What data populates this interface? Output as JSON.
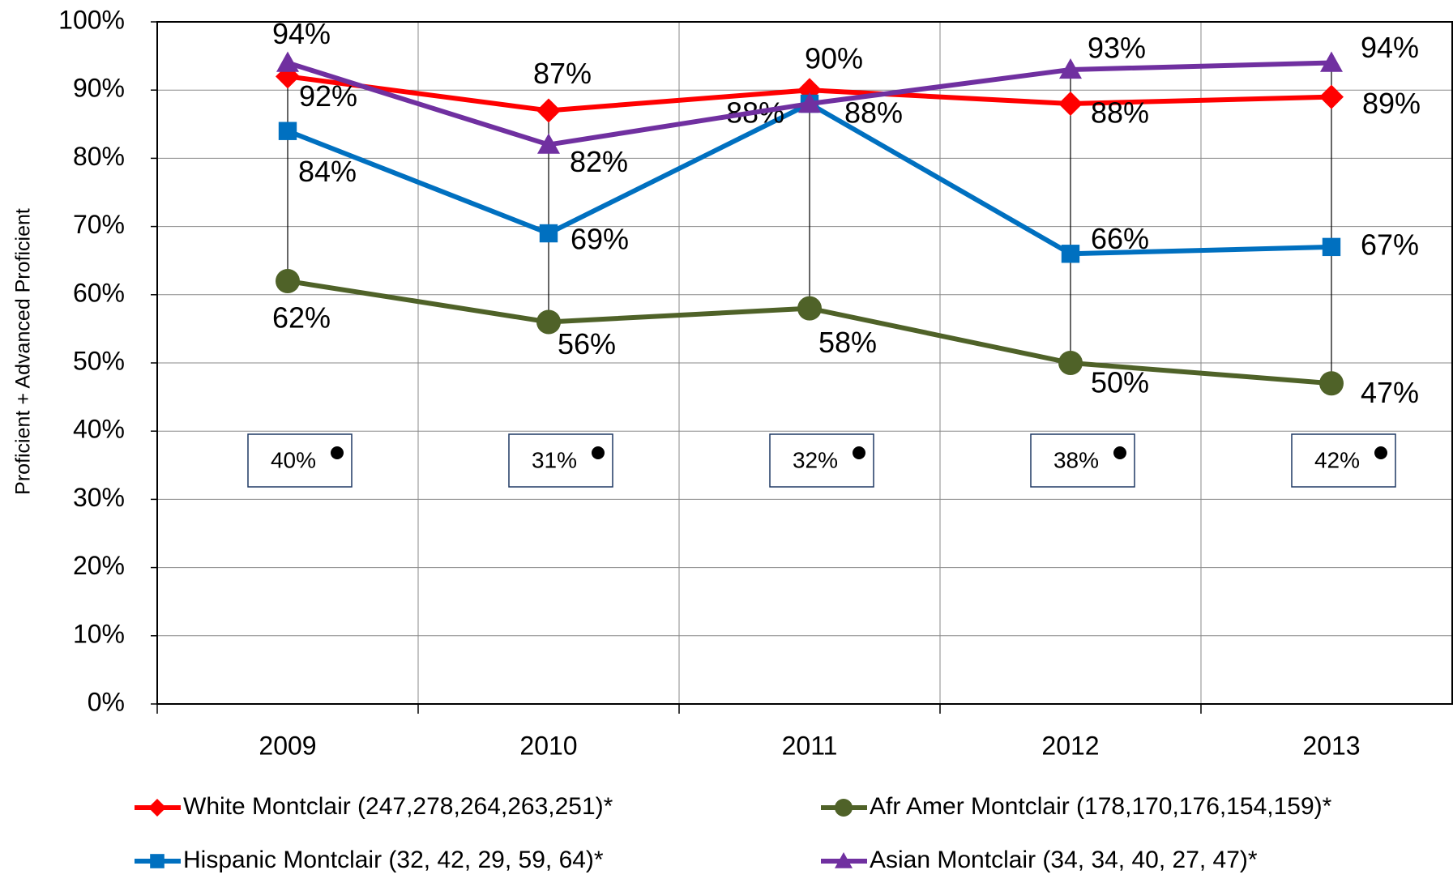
{
  "chart_data": {
    "type": "line",
    "y_axis_label": "Proficient + Advanced Proficient",
    "categories": [
      "2009",
      "2010",
      "2011",
      "2012",
      "2013"
    ],
    "ylim": [
      0,
      100
    ],
    "yticks": [
      {
        "value": 0,
        "label": "0%"
      },
      {
        "value": 10,
        "label": "10%"
      },
      {
        "value": 20,
        "label": "20%"
      },
      {
        "value": 30,
        "label": "30%"
      },
      {
        "value": 40,
        "label": "40%"
      },
      {
        "value": 50,
        "label": "50%"
      },
      {
        "value": 60,
        "label": "60%"
      },
      {
        "value": 70,
        "label": "70%"
      },
      {
        "value": 80,
        "label": "80%"
      },
      {
        "value": 90,
        "label": "90%"
      },
      {
        "value": 100,
        "label": "100%"
      }
    ],
    "grid": true,
    "series": [
      {
        "name": "White Montclair (247,278,264,263,251)*",
        "color": "#ff0000",
        "marker": "diamond",
        "values": [
          92,
          87,
          90,
          88,
          89
        ],
        "value_labels": [
          "92%",
          "87%",
          "90%",
          "88%",
          "89%"
        ]
      },
      {
        "name": "Hispanic Montclair (32, 42, 29, 59, 64)*",
        "color": "#0070c0",
        "marker": "square",
        "values": [
          84,
          69,
          88,
          66,
          67
        ],
        "value_labels": [
          "84%",
          "69%",
          "88%",
          "66%",
          "67%"
        ]
      },
      {
        "name": "Afr Amer Montclair (178,170,176,154,159)*",
        "color": "#4f6228",
        "marker": "circle",
        "values": [
          62,
          56,
          58,
          50,
          47
        ],
        "value_labels": [
          "62%",
          "56%",
          "58%",
          "50%",
          "47%"
        ]
      },
      {
        "name": "Asian Montclair (34, 34, 40, 27, 47)*",
        "color": "#7030a0",
        "marker": "triangle",
        "values": [
          94,
          82,
          88,
          93,
          94
        ],
        "value_labels": [
          "94%",
          "82%",
          "88%",
          "93%",
          "94%"
        ]
      }
    ],
    "annotations": [
      "40%",
      "31%",
      "32%",
      "38%",
      "42%"
    ]
  }
}
